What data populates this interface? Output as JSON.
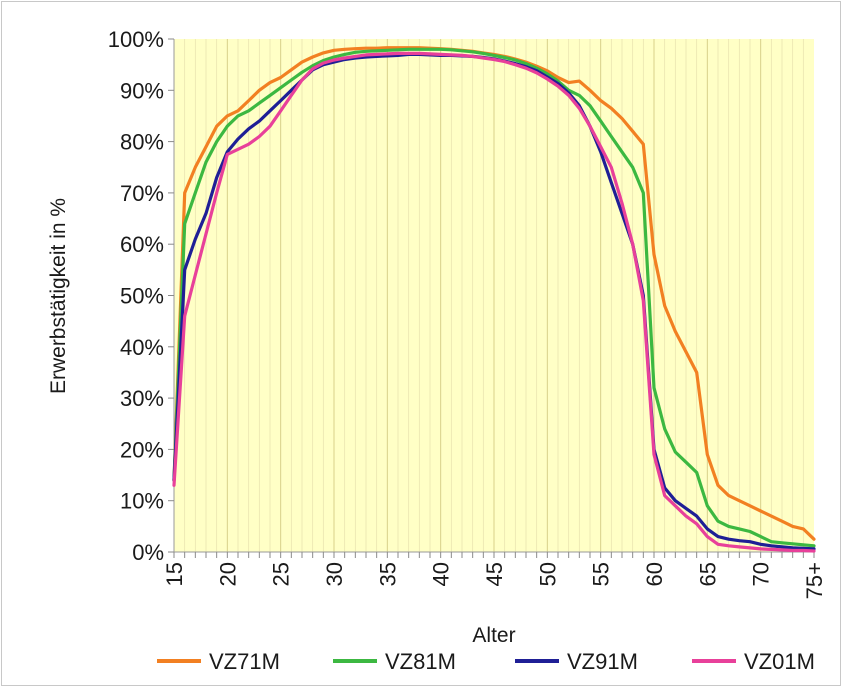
{
  "chart_data": {
    "type": "line",
    "title": "",
    "xlabel": "Alter",
    "ylabel": "Erwerbstätigkeit in %",
    "x_tick_labels": [
      "15",
      "20",
      "25",
      "30",
      "35",
      "40",
      "45",
      "50",
      "55",
      "60",
      "65",
      "70",
      "75+"
    ],
    "x_tick_values": [
      15,
      20,
      25,
      30,
      35,
      40,
      45,
      50,
      55,
      60,
      65,
      70,
      75
    ],
    "xlim": [
      15,
      75
    ],
    "y_tick_labels": [
      "0%",
      "10%",
      "20%",
      "30%",
      "40%",
      "50%",
      "60%",
      "70%",
      "80%",
      "90%",
      "100%"
    ],
    "y_tick_values": [
      0,
      10,
      20,
      30,
      40,
      50,
      60,
      70,
      80,
      90,
      100
    ],
    "ylim": [
      0,
      100
    ],
    "grid": "vertical",
    "legend_position": "bottom",
    "plot_background": "#ffffc6",
    "series": [
      {
        "name": "VZ71M",
        "color": "#f28022",
        "x": [
          15,
          16,
          17,
          18,
          19,
          20,
          21,
          22,
          23,
          24,
          25,
          26,
          27,
          28,
          29,
          30,
          31,
          32,
          33,
          34,
          35,
          36,
          37,
          38,
          39,
          40,
          41,
          42,
          43,
          44,
          45,
          46,
          47,
          48,
          49,
          50,
          51,
          52,
          53,
          54,
          55,
          56,
          57,
          58,
          59,
          60,
          61,
          62,
          63,
          64,
          65,
          66,
          67,
          68,
          69,
          70,
          71,
          72,
          73,
          74,
          75
        ],
        "values": [
          14,
          70,
          75,
          79,
          83,
          85,
          86,
          88,
          90,
          91.5,
          92.5,
          94,
          95.5,
          96.5,
          97.3,
          97.8,
          98,
          98.1,
          98.2,
          98.2,
          98.3,
          98.3,
          98.3,
          98.3,
          98.2,
          98.1,
          98,
          97.8,
          97.6,
          97.3,
          97,
          96.6,
          96.1,
          95.5,
          94.7,
          93.8,
          92.5,
          91.5,
          91.8,
          90,
          88,
          86.5,
          84.5,
          82,
          79.5,
          58,
          48,
          43,
          39,
          35,
          19,
          13,
          11,
          10,
          9,
          8,
          7,
          6,
          5,
          4.5,
          2.5
        ]
      },
      {
        "name": "VZ81M",
        "color": "#3cb841",
        "x": [
          15,
          16,
          17,
          18,
          19,
          20,
          21,
          22,
          23,
          24,
          25,
          26,
          27,
          28,
          29,
          30,
          31,
          32,
          33,
          34,
          35,
          36,
          37,
          38,
          39,
          40,
          41,
          42,
          43,
          44,
          45,
          46,
          47,
          48,
          49,
          50,
          51,
          52,
          53,
          54,
          55,
          56,
          57,
          58,
          59,
          60,
          61,
          62,
          63,
          64,
          65,
          66,
          67,
          68,
          69,
          70,
          71,
          72,
          73,
          74,
          75
        ],
        "values": [
          14,
          64,
          70,
          76,
          80,
          83,
          85,
          86,
          87.5,
          89,
          90.5,
          92,
          93.5,
          94.8,
          95.8,
          96.5,
          97,
          97.4,
          97.6,
          97.7,
          97.8,
          97.9,
          98,
          98,
          98,
          98,
          97.9,
          97.7,
          97.5,
          97.2,
          96.8,
          96.4,
          95.9,
          95.2,
          94.3,
          93.2,
          91.8,
          90,
          89,
          87,
          84,
          81,
          78,
          75,
          70,
          32,
          24,
          19.5,
          17.5,
          15.5,
          9,
          6,
          5,
          4.5,
          4,
          3,
          2,
          1.8,
          1.6,
          1.4,
          1.2
        ]
      },
      {
        "name": "VZ91M",
        "color": "#1f1f96",
        "x": [
          15,
          16,
          17,
          18,
          19,
          20,
          21,
          22,
          23,
          24,
          25,
          26,
          27,
          28,
          29,
          30,
          31,
          32,
          33,
          34,
          35,
          36,
          37,
          38,
          39,
          40,
          41,
          42,
          43,
          44,
          45,
          46,
          47,
          48,
          49,
          50,
          51,
          52,
          53,
          54,
          55,
          56,
          57,
          58,
          59,
          60,
          61,
          62,
          63,
          64,
          65,
          66,
          67,
          68,
          69,
          70,
          71,
          72,
          73,
          74,
          75
        ],
        "values": [
          14,
          55,
          61,
          66,
          73,
          78,
          80.5,
          82.5,
          84,
          86,
          88,
          90,
          92,
          94,
          95,
          95.5,
          96,
          96.3,
          96.5,
          96.6,
          96.7,
          96.8,
          97,
          97,
          96.9,
          96.8,
          96.8,
          96.7,
          96.6,
          96.4,
          96.1,
          95.7,
          95.2,
          94.6,
          93.8,
          92.6,
          91.3,
          89.5,
          87,
          83,
          78,
          72,
          66,
          60,
          50,
          20,
          12.5,
          10,
          8.5,
          7,
          4.5,
          3,
          2.5,
          2.2,
          2,
          1.5,
          1.2,
          1,
          0.8,
          0.7,
          0.6
        ]
      },
      {
        "name": "VZ01M",
        "color": "#e8409a",
        "x": [
          15,
          16,
          17,
          18,
          19,
          20,
          21,
          22,
          23,
          24,
          25,
          26,
          27,
          28,
          29,
          30,
          31,
          32,
          33,
          34,
          35,
          36,
          37,
          38,
          39,
          40,
          41,
          42,
          43,
          44,
          45,
          46,
          47,
          48,
          49,
          50,
          51,
          52,
          53,
          54,
          55,
          56,
          57,
          58,
          59,
          60,
          61,
          62,
          63,
          64,
          65,
          66,
          67,
          68,
          69,
          70,
          71,
          72,
          73,
          74,
          75
        ],
        "values": [
          13,
          46,
          54,
          62,
          70,
          77.5,
          78.5,
          79.5,
          81,
          83,
          86,
          89,
          92,
          94.2,
          95.3,
          95.9,
          96.3,
          96.6,
          96.9,
          97,
          97.1,
          97.2,
          97.2,
          97.2,
          97.1,
          97,
          96.9,
          96.8,
          96.6,
          96.3,
          96,
          95.6,
          95,
          94.3,
          93.4,
          92.2,
          90.8,
          89,
          86.5,
          83,
          79,
          75,
          68,
          60,
          49,
          19,
          11,
          9,
          7,
          5.5,
          3,
          1.5,
          1.2,
          1,
          0.8,
          0.6,
          0.5,
          0.4,
          0.3,
          0.3,
          0.2
        ]
      }
    ]
  }
}
